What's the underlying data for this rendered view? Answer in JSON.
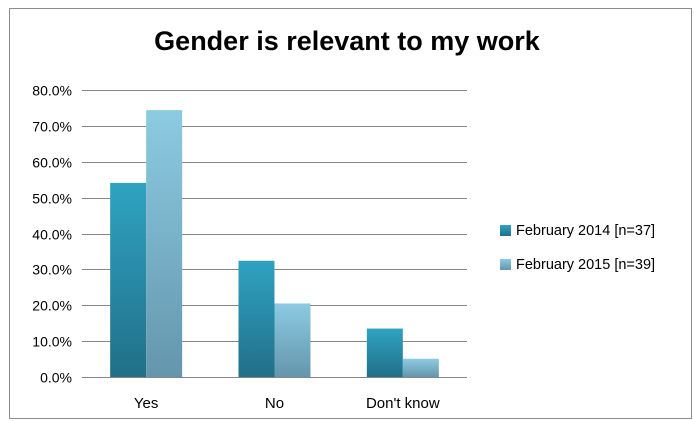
{
  "chart_data": {
    "type": "bar",
    "title": "Gender is relevant to my work",
    "categories": [
      "Yes",
      "No",
      "Don't know"
    ],
    "series": [
      {
        "name": "February 2014 [n=37]",
        "values": [
          54.1,
          32.4,
          13.5
        ],
        "color": "#2d9ab8"
      },
      {
        "name": "February 2015 [n=39]",
        "values": [
          74.4,
          20.5,
          5.1
        ],
        "color": "#7fc3dc"
      }
    ],
    "ylim": [
      0,
      80
    ],
    "ytick_step": 10,
    "ytick_labels": [
      "0.0%",
      "10.0%",
      "20.0%",
      "30.0%",
      "40.0%",
      "50.0%",
      "60.0%",
      "70.0%",
      "80.0%"
    ],
    "grid": true,
    "legend_position": "right",
    "xlabel": "",
    "ylabel": ""
  }
}
